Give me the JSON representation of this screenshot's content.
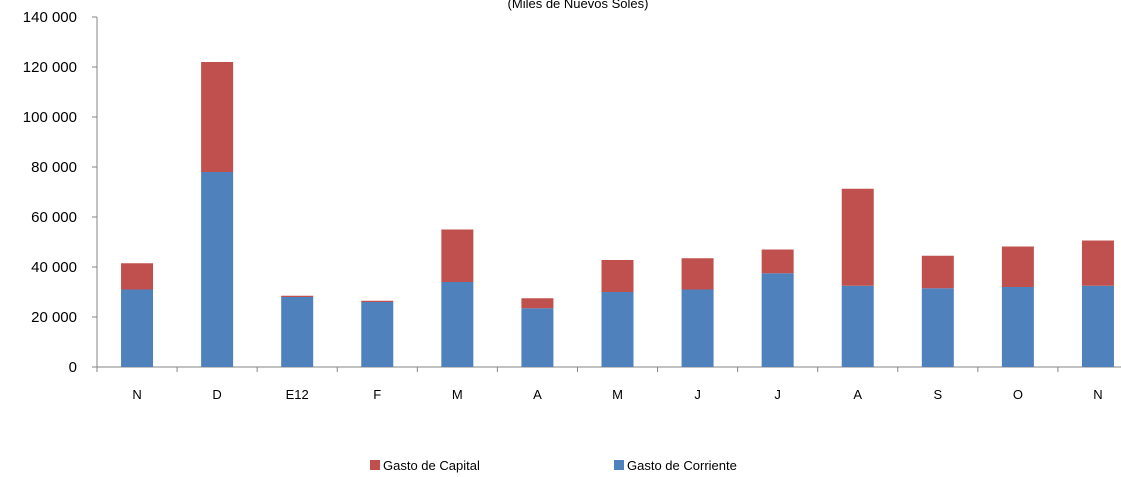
{
  "chart_data": {
    "type": "bar",
    "stacked": true,
    "subtitle": "(Miles de Nuevos Soles)",
    "categories": [
      "N",
      "D",
      "E12",
      "F",
      "M",
      "A",
      "M",
      "J",
      "J",
      "A",
      "S",
      "O",
      "N"
    ],
    "series": [
      {
        "name": "Gasto de Corriente",
        "color": "#4f81bd",
        "values": [
          31000,
          78000,
          28000,
          26000,
          34000,
          23500,
          30000,
          31000,
          37500,
          32500,
          31500,
          32000,
          32500
        ]
      },
      {
        "name": "Gasto de Capital",
        "color": "#c0504d",
        "values": [
          10500,
          44000,
          500,
          500,
          21000,
          4000,
          12800,
          12500,
          9500,
          38800,
          13000,
          16200,
          18100
        ]
      }
    ],
    "ylim": [
      0,
      140000
    ],
    "yticks": [
      "0",
      "20 000",
      "40 000",
      "60 000",
      "80 000",
      "100 000",
      "120 000",
      "140 000"
    ],
    "ytick_values": [
      0,
      20000,
      40000,
      60000,
      80000,
      100000,
      120000,
      140000
    ],
    "legend": {
      "position": "bottom",
      "order": [
        "Gasto de Capital",
        "Gasto de Corriente"
      ]
    },
    "grid": false
  }
}
